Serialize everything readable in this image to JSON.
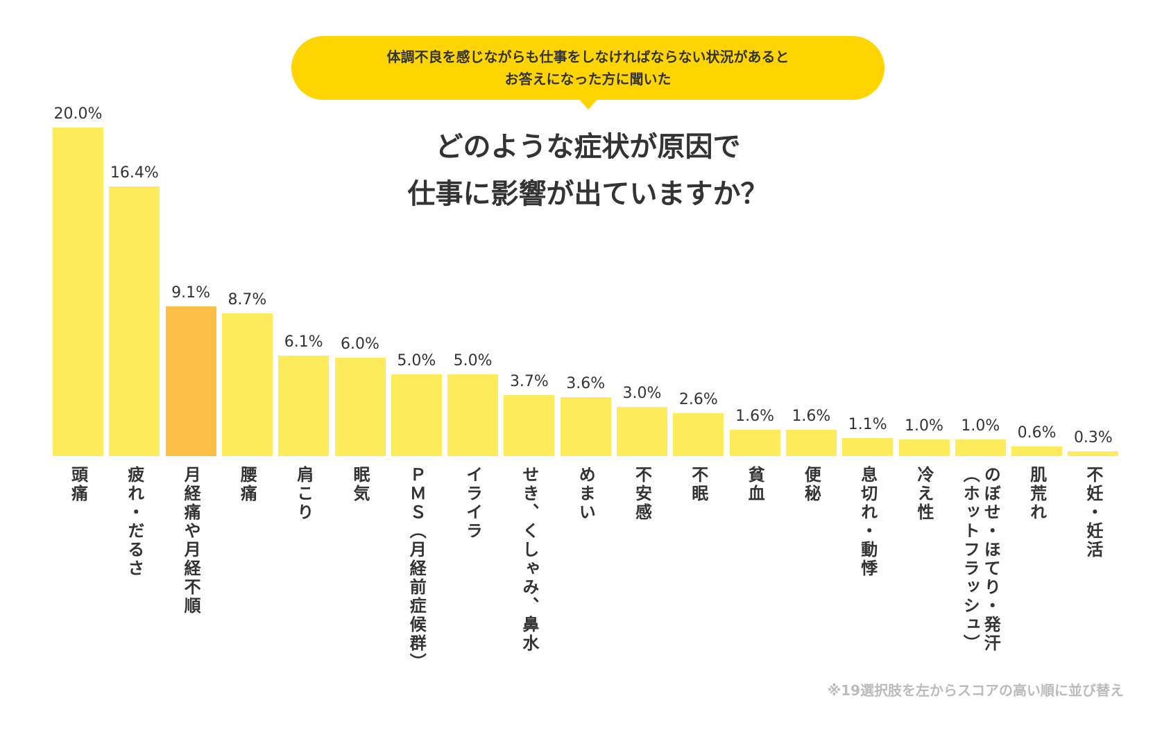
{
  "header": {
    "bubble_lines": [
      "体調不良を感じながらも仕事をしなければならない状況があると",
      "お答えになった方に聞いた"
    ],
    "title_lines": [
      "どのような症状が原因で",
      "仕事に影響が出ていますか？"
    ]
  },
  "footnote": "※19選択肢を左からスコアの高い順に並び替え",
  "colors": {
    "bar": "#FFEC5C",
    "highlight": "#FDBF45",
    "bubble": "#FFD500"
  },
  "chart_data": {
    "type": "bar",
    "unit": "%",
    "ylim": [
      0,
      20
    ],
    "grid": false,
    "highlight_index": 2,
    "categories": [
      [
        "頭痛"
      ],
      [
        "疲れ・だるさ"
      ],
      [
        "月経痛や月経不順"
      ],
      [
        "腰痛"
      ],
      [
        "肩こり"
      ],
      [
        "眠気"
      ],
      [
        "ＰＭＳ（月経前症候群）"
      ],
      [
        "イライラ"
      ],
      [
        "せき、くしゃみ、鼻水"
      ],
      [
        "めまい"
      ],
      [
        "不安感"
      ],
      [
        "不眠"
      ],
      [
        "貧血"
      ],
      [
        "便秘"
      ],
      [
        "息切れ・動悸"
      ],
      [
        "冷え性"
      ],
      [
        "のぼせ・ほてり・発汗",
        "（ホットフラッシュ）"
      ],
      [
        "肌荒れ"
      ],
      [
        "不妊・妊活"
      ]
    ],
    "values": [
      20.0,
      16.4,
      9.1,
      8.7,
      6.1,
      6.0,
      5.0,
      5.0,
      3.7,
      3.6,
      3.0,
      2.6,
      1.6,
      1.6,
      1.1,
      1.0,
      1.0,
      0.6,
      0.3
    ],
    "labels": [
      "20.0%",
      "16.4%",
      "9.1%",
      "8.7%",
      "6.1%",
      "6.0%",
      "5.0%",
      "5.0%",
      "3.7%",
      "3.6%",
      "3.0%",
      "2.6%",
      "1.6%",
      "1.6%",
      "1.1%",
      "1.0%",
      "1.0%",
      "0.6%",
      "0.3%"
    ]
  }
}
